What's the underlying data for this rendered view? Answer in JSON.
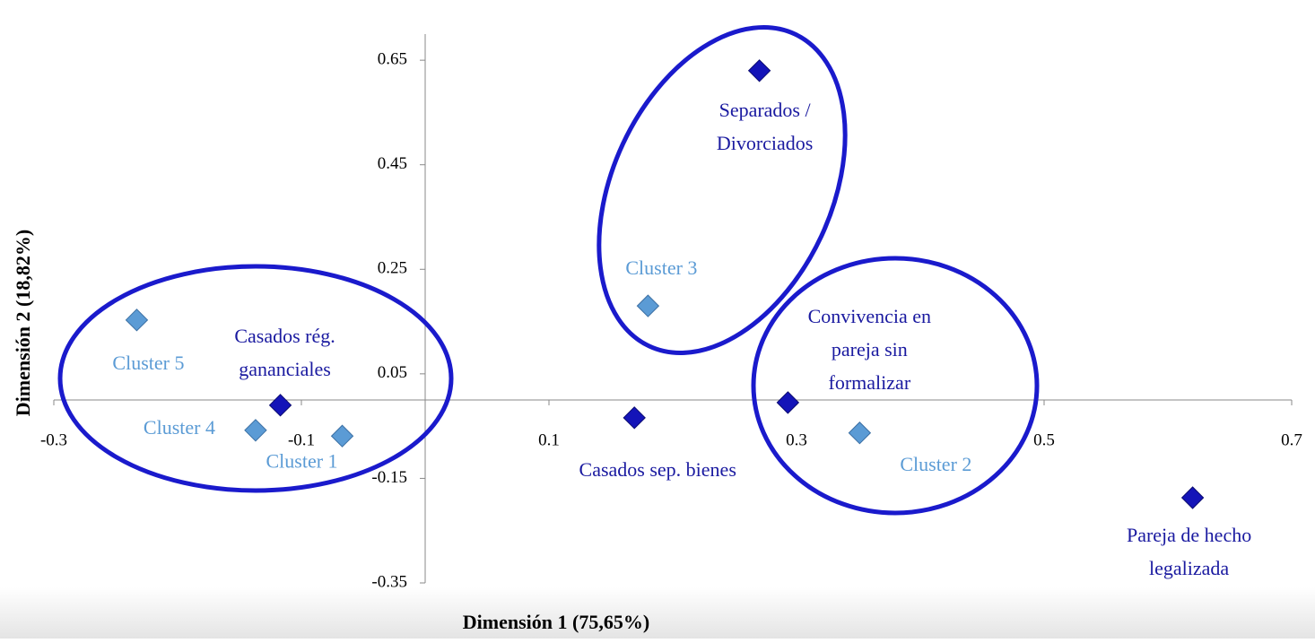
{
  "chart_data": {
    "type": "scatter",
    "x_label": "Dimensión 1 (75,65%)",
    "y_label": "Dimensión 2 (18,82%)",
    "xlim": [
      -0.3,
      0.7
    ],
    "xticks": [
      -0.3,
      -0.1,
      0.1,
      0.3,
      0.5,
      0.7
    ],
    "ylim": [
      -0.35,
      0.7
    ],
    "yticks": [
      0.65,
      0.45,
      0.25,
      0.05,
      -0.15,
      -0.35
    ],
    "grid": false,
    "series": [
      {
        "color": "#1414b8",
        "label_color": "#1a1aa0",
        "x": [
          0.27,
          -0.117,
          0.169,
          0.293,
          0.62
        ],
        "values": [
          0.63,
          -0.01,
          -0.034,
          -0.005,
          -0.187
        ],
        "labels": [
          [
            "Separados /",
            "Divorciados"
          ],
          [
            "Casados rég.",
            "gananciales"
          ],
          [
            "Casados sep. bienes"
          ],
          [
            "Convivencia en",
            "pareja sin",
            "formalizar"
          ],
          [
            "Pareja de hecho",
            "legalizada"
          ]
        ]
      },
      {
        "color": "#5b9bd5",
        "label_color": "#5b9bd5",
        "x": [
          0.18,
          -0.233,
          -0.137,
          -0.067,
          0.351
        ],
        "values": [
          0.18,
          0.153,
          -0.058,
          -0.069,
          -0.063
        ],
        "labels": [
          [
            "Cluster 3"
          ],
          [
            "Cluster 5"
          ],
          [
            "Cluster 4"
          ],
          [
            "Cluster 1"
          ],
          [
            "Cluster 2"
          ]
        ]
      }
    ]
  }
}
